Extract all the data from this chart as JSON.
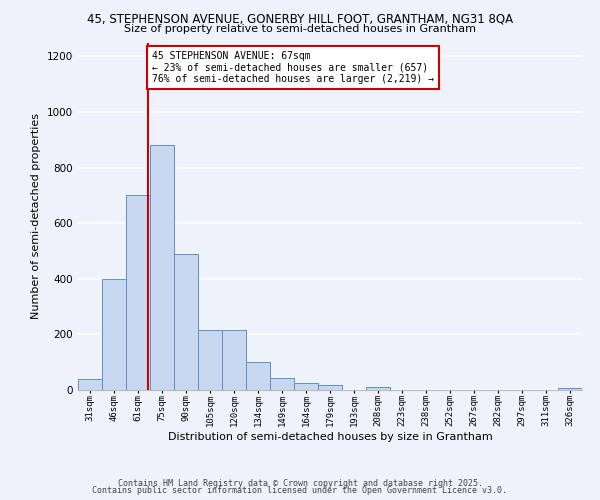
{
  "title_line1": "45, STEPHENSON AVENUE, GONERBY HILL FOOT, GRANTHAM, NG31 8QA",
  "title_line2": "Size of property relative to semi-detached houses in Grantham",
  "xlabel": "Distribution of semi-detached houses by size in Grantham",
  "ylabel": "Number of semi-detached properties",
  "bar_labels": [
    "31sqm",
    "46sqm",
    "61sqm",
    "75sqm",
    "90sqm",
    "105sqm",
    "120sqm",
    "134sqm",
    "149sqm",
    "164sqm",
    "179sqm",
    "193sqm",
    "208sqm",
    "223sqm",
    "238sqm",
    "252sqm",
    "267sqm",
    "282sqm",
    "297sqm",
    "311sqm",
    "326sqm"
  ],
  "bar_values": [
    40,
    400,
    700,
    880,
    490,
    215,
    215,
    100,
    43,
    25,
    18,
    0,
    10,
    0,
    0,
    0,
    0,
    0,
    0,
    0,
    8
  ],
  "bar_color": "#c8d8f0",
  "bar_edge_color": "#5b8fcc",
  "ylim": [
    0,
    1250
  ],
  "yticks": [
    0,
    200,
    400,
    600,
    800,
    1000,
    1200
  ],
  "property_size": 67,
  "annotation_title": "45 STEPHENSON AVENUE: 67sqm",
  "annotation_line1": "← 23% of semi-detached houses are smaller (657)",
  "annotation_line2": "76% of semi-detached houses are larger (2,219) →",
  "annotation_box_color": "#ffffff",
  "annotation_box_edge_color": "#cc0000",
  "vline_color": "#cc0000",
  "footer_line1": "Contains HM Land Registry data © Crown copyright and database right 2025.",
  "footer_line2": "Contains public sector information licensed under the Open Government Licence v3.0.",
  "background_color": "#eef2fb",
  "grid_color": "#ffffff"
}
